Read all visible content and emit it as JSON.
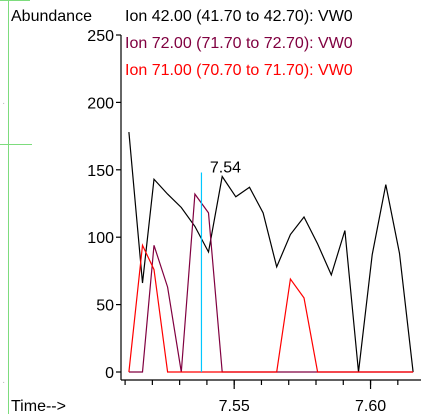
{
  "ui": {
    "frame_color": "#7ddc7d",
    "frame_dots": [
      "·",
      "·"
    ]
  },
  "chart_data": {
    "type": "line",
    "xlabel": "Time-->",
    "ylabel": "Abundance",
    "xlim": [
      7.5085,
      7.6185
    ],
    "ylim": [
      0,
      250
    ],
    "x_ticks": [
      7.55,
      7.6
    ],
    "x_tick_labels": [
      "7.55",
      "7.60"
    ],
    "x_minor_ticks": [
      7.51,
      7.52,
      7.53,
      7.54,
      7.55,
      7.56,
      7.57,
      7.58,
      7.59,
      7.6,
      7.61
    ],
    "y_ticks": [
      0,
      50,
      100,
      150,
      200,
      250
    ],
    "y_tick_labels": [
      "0",
      "50",
      "100",
      "150",
      "200",
      "250"
    ],
    "peak_label": {
      "text": "7.54",
      "x": 7.538,
      "y": 148,
      "line_color": "#00c8ff"
    },
    "series": [
      {
        "name": "Ion  42.00 (41.70 to 42.70): VW0",
        "color": "#000000",
        "x": [
          7.5114,
          7.5164,
          7.5206,
          7.5256,
          7.5306,
          7.5356,
          7.5406,
          7.5456,
          7.5506,
          7.5556,
          7.5606,
          7.5656,
          7.5706,
          7.5756,
          7.5806,
          7.5856,
          7.5906,
          7.5956,
          7.6006,
          7.6056,
          7.6106,
          7.6156
        ],
        "y": [
          178,
          66,
          143,
          132,
          122,
          108,
          89,
          145,
          130,
          137,
          118,
          78,
          102,
          115,
          95,
          72,
          105,
          0,
          87,
          139,
          88,
          0
        ]
      },
      {
        "name": "Ion  72.00 (71.70 to 72.70): VW0",
        "color": "#800040",
        "x": [
          7.5114,
          7.5164,
          7.5206,
          7.5256,
          7.5306,
          7.5356,
          7.5406,
          7.5456,
          7.5506,
          7.5556,
          7.5606,
          7.5656,
          7.5706,
          7.5756,
          7.5806,
          7.5856,
          7.5906,
          7.5956,
          7.6006,
          7.6056,
          7.6106,
          7.6156
        ],
        "y": [
          0,
          0,
          94,
          63,
          0,
          132,
          118,
          0,
          0,
          0,
          0,
          0,
          0,
          0,
          0,
          0,
          0,
          0,
          0,
          0,
          0,
          0
        ]
      },
      {
        "name": "Ion  71.00 (70.70 to 71.70): VW0",
        "color": "#ff0000",
        "x": [
          7.5114,
          7.5164,
          7.5206,
          7.5256,
          7.5306,
          7.5356,
          7.5406,
          7.5456,
          7.5506,
          7.5556,
          7.5606,
          7.5656,
          7.5706,
          7.5756,
          7.5806,
          7.5856,
          7.5906,
          7.5956,
          7.6006,
          7.6056,
          7.6106,
          7.6156
        ],
        "y": [
          0,
          94,
          76,
          0,
          0,
          0,
          0,
          0,
          0,
          0,
          0,
          0,
          69,
          55,
          0,
          0,
          0,
          0,
          0,
          0,
          0,
          0
        ]
      }
    ]
  }
}
